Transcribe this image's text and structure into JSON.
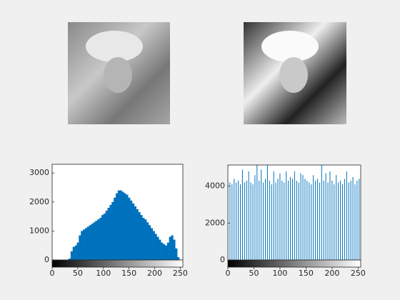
{
  "chart_data": [
    {
      "type": "histogram",
      "bins": [
        0,
        4,
        8,
        12,
        16,
        20,
        24,
        28,
        32,
        36,
        40,
        44,
        48,
        52,
        56,
        60,
        64,
        68,
        72,
        76,
        80,
        84,
        88,
        92,
        96,
        100,
        104,
        108,
        112,
        116,
        120,
        124,
        128,
        132,
        136,
        140,
        144,
        148,
        152,
        156,
        160,
        164,
        168,
        172,
        176,
        180,
        184,
        188,
        192,
        196,
        200,
        204,
        208,
        212,
        216,
        220,
        224,
        228,
        232,
        236,
        240,
        244,
        248,
        252,
        256
      ],
      "values": [
        0,
        0,
        0,
        0,
        0,
        0,
        0,
        0,
        50,
        300,
        450,
        500,
        600,
        850,
        1000,
        1050,
        1100,
        1150,
        1200,
        1250,
        1300,
        1350,
        1400,
        1450,
        1550,
        1600,
        1700,
        1800,
        1900,
        2000,
        2150,
        2300,
        2400,
        2400,
        2350,
        2300,
        2250,
        2150,
        2050,
        1950,
        1850,
        1750,
        1650,
        1550,
        1450,
        1400,
        1300,
        1200,
        1100,
        1000,
        900,
        800,
        700,
        600,
        550,
        500,
        600,
        800,
        850,
        700,
        400,
        100,
        0,
        0
      ],
      "color": "#0072bd",
      "xlim": [
        0,
        255
      ],
      "xticks": [
        0,
        50,
        100,
        150,
        200,
        250
      ],
      "ylim": [
        0,
        3300
      ],
      "yticks": [
        0,
        1000,
        2000,
        3000
      ]
    },
    {
      "type": "stem",
      "x": [
        0,
        4,
        8,
        12,
        16,
        20,
        24,
        28,
        32,
        36,
        40,
        44,
        48,
        52,
        56,
        60,
        64,
        68,
        72,
        76,
        80,
        84,
        88,
        92,
        96,
        100,
        104,
        108,
        112,
        116,
        120,
        124,
        128,
        132,
        136,
        140,
        144,
        148,
        152,
        156,
        160,
        164,
        168,
        172,
        176,
        180,
        184,
        188,
        192,
        196,
        200,
        204,
        208,
        212,
        216,
        220,
        224,
        228,
        232,
        236,
        240,
        244,
        248,
        252
      ],
      "values": [
        4300,
        4200,
        4100,
        4400,
        4200,
        4300,
        4100,
        4900,
        4200,
        4300,
        4800,
        4200,
        4100,
        4600,
        5200,
        4300,
        4900,
        4200,
        4400,
        5200,
        4300,
        4100,
        4800,
        4200,
        4400,
        4700,
        4300,
        4200,
        4800,
        4300,
        4500,
        4400,
        4800,
        4300,
        4200,
        4700,
        4600,
        4400,
        4300,
        4200,
        4100,
        4600,
        4300,
        4400,
        4200,
        5200,
        4300,
        4700,
        4200,
        4800,
        4300,
        4100,
        4600,
        4200,
        4300,
        4100,
        4400,
        4800,
        4200,
        4300,
        4500,
        4100,
        4300,
        4400
      ],
      "color": "#0072bd",
      "xlim": [
        0,
        255
      ],
      "xticks": [
        0,
        50,
        100,
        150,
        200,
        250
      ],
      "ylim": [
        0,
        5150
      ],
      "yticks": [
        0,
        2000,
        4000
      ]
    }
  ]
}
